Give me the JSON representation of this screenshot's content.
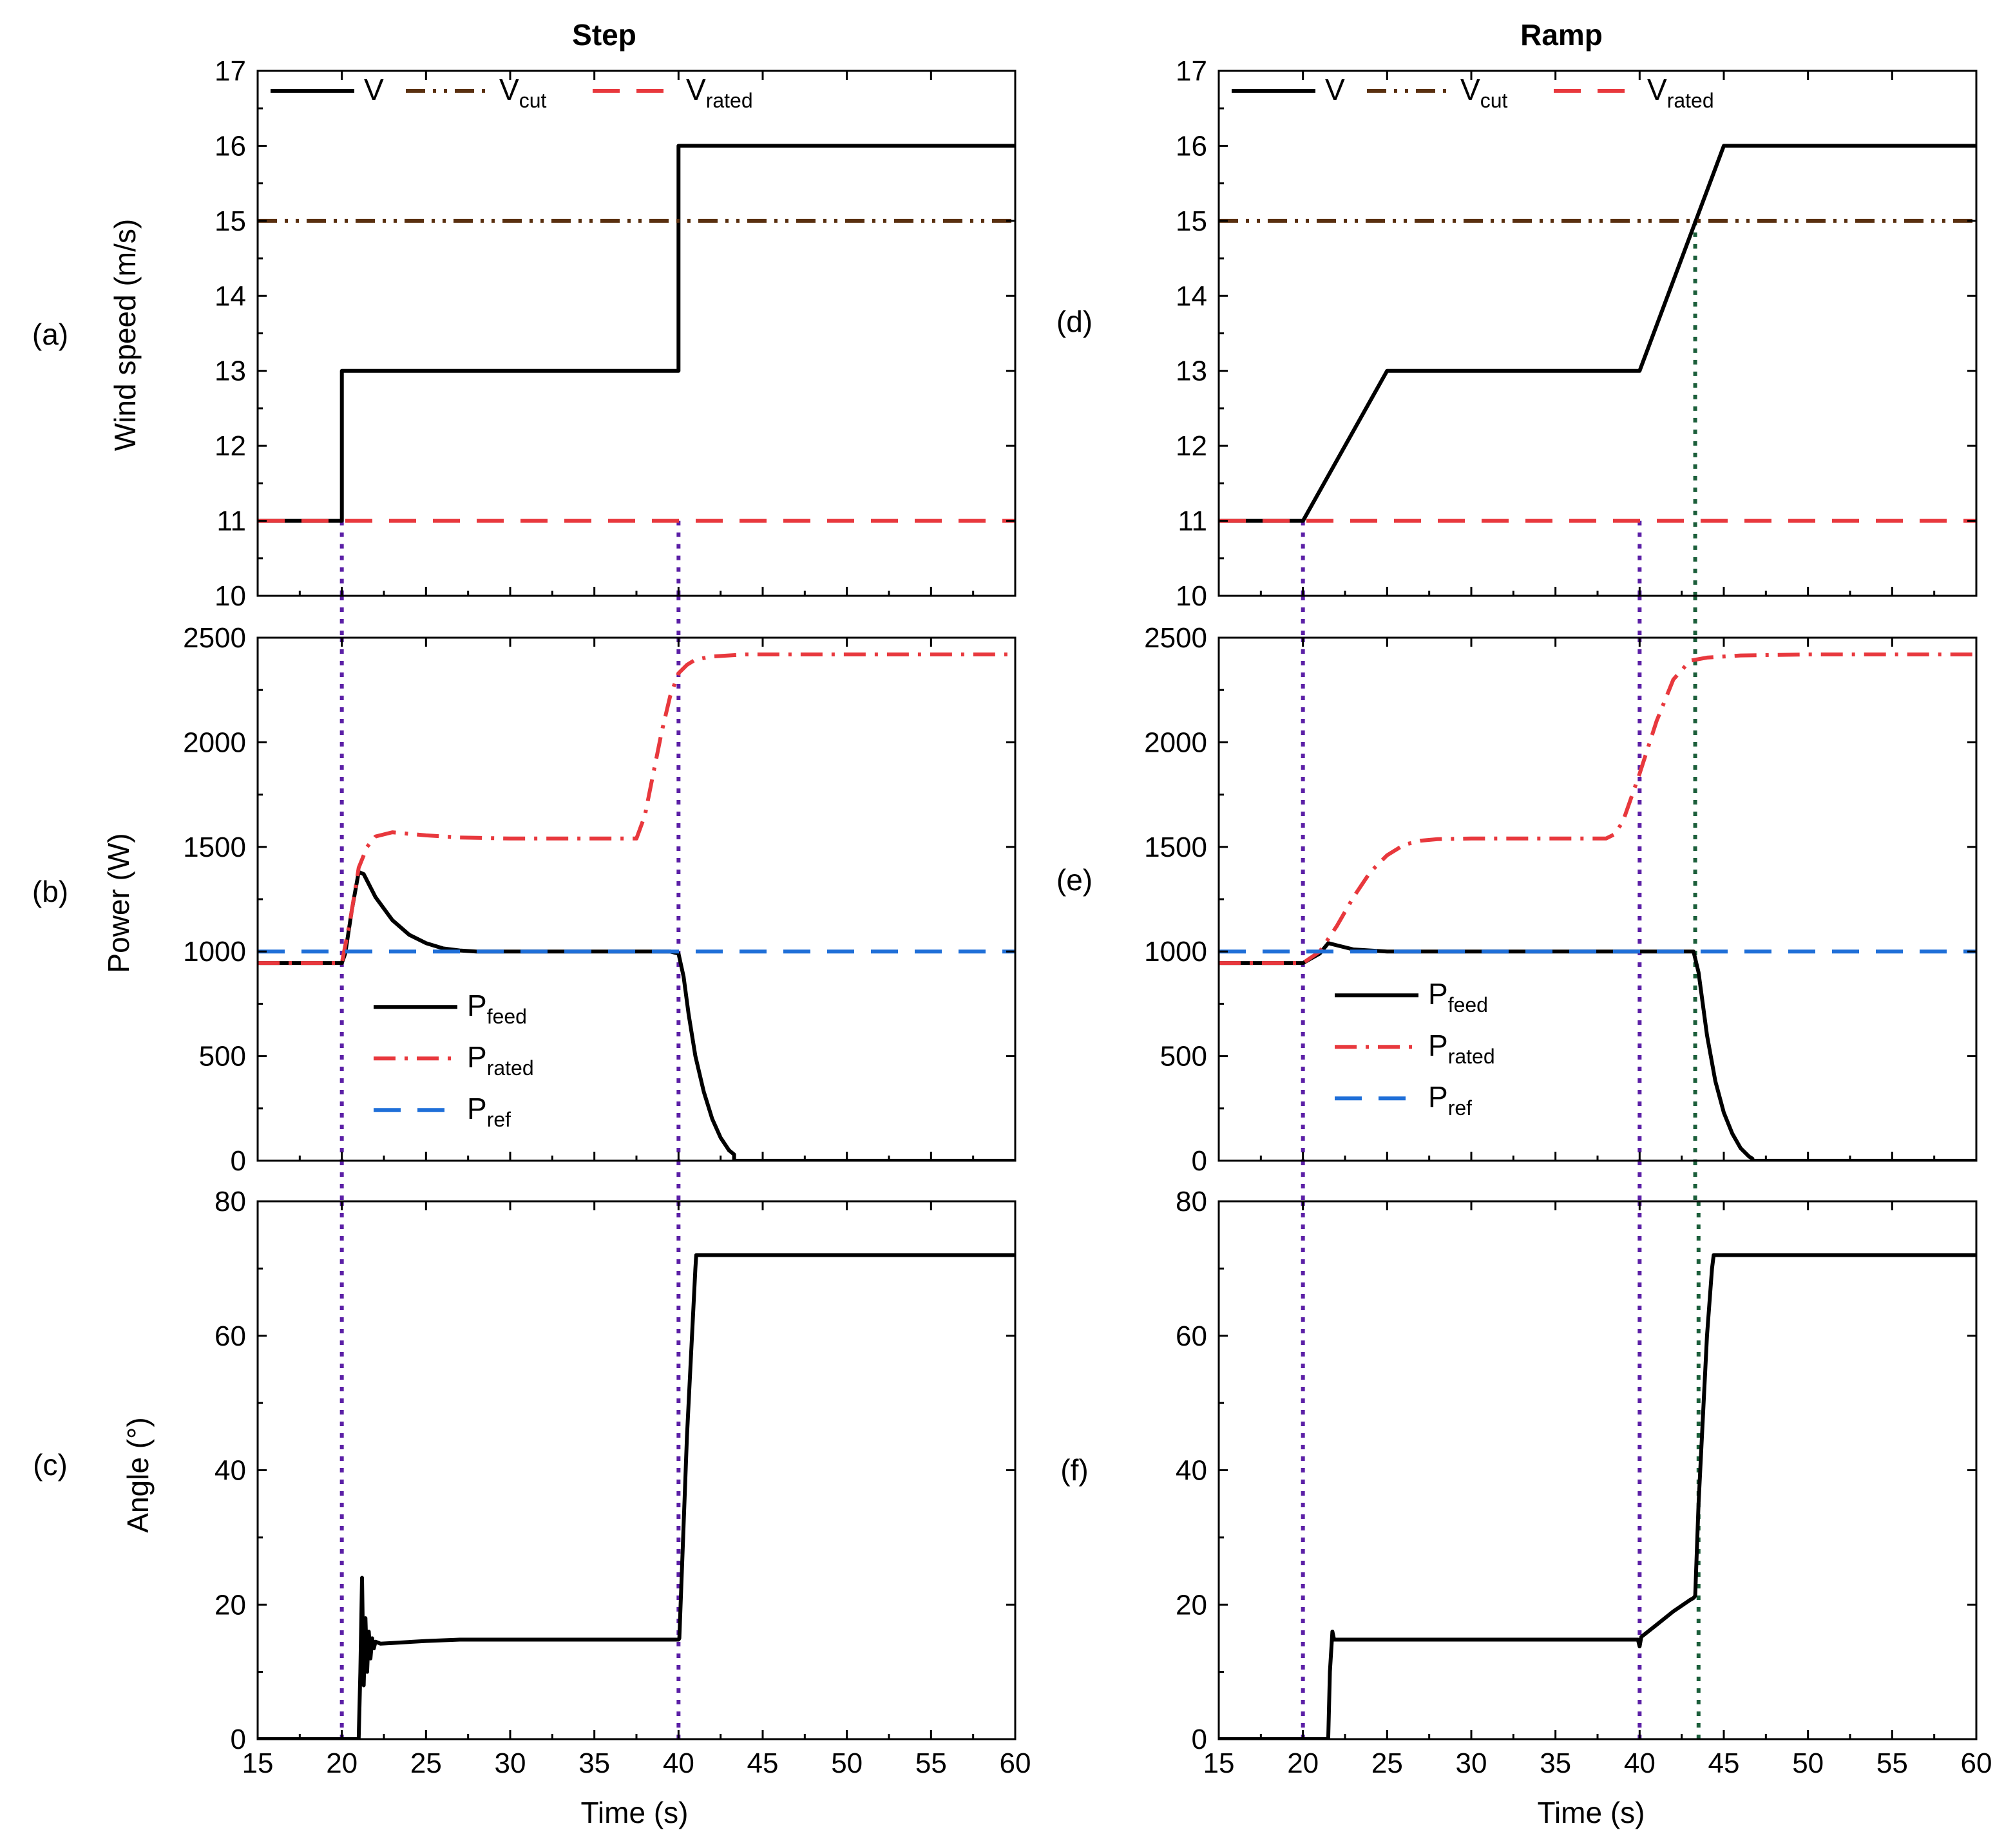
{
  "figure": {
    "columns": [
      {
        "title": "Step"
      },
      {
        "title": "Ramp"
      }
    ],
    "panel_labels": [
      "(a)",
      "(b)",
      "(c)",
      "(d)",
      "(e)",
      "(f)"
    ],
    "y_labels": [
      "Wind speed (m/s)",
      "Power (W)",
      "Angle (°)"
    ],
    "x_label": "Time (s)"
  },
  "colors": {
    "black": "#000000",
    "vcut": "#5a3010",
    "rated": "#e8383d",
    "ref": "#1f6fd8",
    "marker_purple": "#5b1fa6",
    "marker_green": "#1b5e3a"
  },
  "chart_data": [
    {
      "id": "a",
      "type": "line",
      "column": 0,
      "row": 0,
      "xlim": [
        15,
        60
      ],
      "ylim": [
        10,
        17
      ],
      "xticks": [
        15,
        20,
        25,
        30,
        35,
        40,
        45,
        50,
        55,
        60
      ],
      "yticks": [
        10,
        11,
        12,
        13,
        14,
        15,
        16,
        17
      ],
      "ylabel": "Wind speed (m/s)",
      "legend_position": "top",
      "series": [
        {
          "name": "V",
          "sub": "",
          "style": "solid",
          "color": "#000000",
          "x": [
            15,
            20,
            20,
            40,
            40,
            60
          ],
          "y": [
            11,
            11,
            13,
            13,
            16,
            16
          ]
        },
        {
          "name": "V",
          "sub": "cut",
          "style": "dashdotdot",
          "color": "#5a3010",
          "x": [
            15,
            60
          ],
          "y": [
            15,
            15
          ]
        },
        {
          "name": "V",
          "sub": "rated",
          "style": "dash",
          "color": "#e8383d",
          "x": [
            15,
            60
          ],
          "y": [
            11,
            11
          ]
        }
      ],
      "vlines": [
        {
          "x": 20,
          "color": "#5b1fa6"
        },
        {
          "x": 40,
          "color": "#5b1fa6"
        }
      ]
    },
    {
      "id": "b",
      "type": "line",
      "column": 0,
      "row": 1,
      "xlim": [
        15,
        60
      ],
      "ylim": [
        0,
        2500
      ],
      "xticks": [
        15,
        20,
        25,
        30,
        35,
        40,
        45,
        50,
        55,
        60
      ],
      "yticks": [
        0,
        500,
        1000,
        1500,
        2000,
        2500
      ],
      "ylabel": "Power (W)",
      "legend_position": "lower-left",
      "series": [
        {
          "name": "P",
          "sub": "feed",
          "style": "solid",
          "color": "#000000",
          "x": [
            15,
            20,
            20.2,
            20.6,
            21.0,
            21.3,
            22,
            23,
            24,
            25,
            26,
            27,
            28,
            30,
            35,
            39.5,
            40,
            40.3,
            40.6,
            41,
            41.5,
            42,
            42.5,
            43,
            43.3,
            43.3,
            60
          ],
          "y": [
            945,
            945,
            990,
            1200,
            1380,
            1370,
            1260,
            1150,
            1080,
            1040,
            1015,
            1005,
            1000,
            1000,
            1000,
            1000,
            990,
            880,
            700,
            500,
            330,
            200,
            110,
            50,
            30,
            0,
            0
          ]
        },
        {
          "name": "P",
          "sub": "rated",
          "style": "dashdot",
          "color": "#e8383d",
          "x": [
            15,
            20,
            20.5,
            21,
            21.5,
            22,
            23,
            25,
            27,
            30,
            35,
            37.5,
            38,
            38.5,
            39,
            39.5,
            40,
            40.5,
            41,
            42,
            44,
            50,
            60
          ],
          "y": [
            945,
            945,
            1150,
            1400,
            1500,
            1550,
            1570,
            1555,
            1545,
            1540,
            1540,
            1540,
            1650,
            1850,
            2050,
            2220,
            2330,
            2370,
            2395,
            2410,
            2420,
            2420,
            2420
          ]
        },
        {
          "name": "P",
          "sub": "ref",
          "style": "dash",
          "color": "#1f6fd8",
          "x": [
            15,
            60
          ],
          "y": [
            1000,
            1000
          ]
        }
      ],
      "vlines": [
        {
          "x": 20,
          "color": "#5b1fa6"
        },
        {
          "x": 40,
          "color": "#5b1fa6"
        }
      ]
    },
    {
      "id": "c",
      "type": "line",
      "column": 0,
      "row": 2,
      "xlim": [
        15,
        60
      ],
      "ylim": [
        0,
        80
      ],
      "xticks": [
        15,
        20,
        25,
        30,
        35,
        40,
        45,
        50,
        55,
        60
      ],
      "yticks": [
        0,
        20,
        40,
        60,
        80
      ],
      "ylabel": "Angle (°)",
      "xlabel": "Time (s)",
      "series": [
        {
          "name": "angle",
          "sub": "",
          "style": "solid",
          "color": "#000000",
          "x": [
            15,
            21.0,
            21.1,
            21.2,
            21.3,
            21.4,
            21.5,
            21.6,
            21.7,
            21.8,
            21.9,
            22.0,
            22.3,
            23,
            25,
            27,
            30,
            35,
            40,
            40.05,
            40.5,
            41,
            41.05,
            60
          ],
          "y": [
            0,
            0,
            10,
            24,
            8,
            18,
            10,
            16,
            12,
            15,
            13.5,
            14.5,
            14.2,
            14.3,
            14.6,
            14.8,
            14.8,
            14.8,
            14.8,
            15,
            45,
            70,
            72,
            72
          ]
        }
      ],
      "vlines": [
        {
          "x": 20,
          "color": "#5b1fa6"
        },
        {
          "x": 40,
          "color": "#5b1fa6"
        }
      ]
    },
    {
      "id": "d",
      "type": "line",
      "column": 1,
      "row": 0,
      "xlim": [
        15,
        60
      ],
      "ylim": [
        10,
        17
      ],
      "xticks": [
        15,
        20,
        25,
        30,
        35,
        40,
        45,
        50,
        55,
        60
      ],
      "yticks": [
        10,
        11,
        12,
        13,
        14,
        15,
        16,
        17
      ],
      "ylabel": "",
      "legend_position": "top",
      "series": [
        {
          "name": "V",
          "sub": "",
          "style": "solid",
          "color": "#000000",
          "x": [
            15,
            20,
            25,
            40,
            45,
            60
          ],
          "y": [
            11,
            11,
            13,
            13,
            16,
            16
          ]
        },
        {
          "name": "V",
          "sub": "cut",
          "style": "dashdotdot",
          "color": "#5a3010",
          "x": [
            15,
            60
          ],
          "y": [
            15,
            15
          ]
        },
        {
          "name": "V",
          "sub": "rated",
          "style": "dash",
          "color": "#e8383d",
          "x": [
            15,
            60
          ],
          "y": [
            11,
            11
          ]
        }
      ],
      "vlines": [
        {
          "x": 20,
          "color": "#5b1fa6"
        },
        {
          "x": 40,
          "color": "#5b1fa6"
        },
        {
          "x": 43.3,
          "color": "#1b5e3a",
          "from": 15
        }
      ]
    },
    {
      "id": "e",
      "type": "line",
      "column": 1,
      "row": 1,
      "xlim": [
        15,
        60
      ],
      "ylim": [
        0,
        2500
      ],
      "xticks": [
        15,
        20,
        25,
        30,
        35,
        40,
        45,
        50,
        55,
        60
      ],
      "yticks": [
        0,
        500,
        1000,
        1500,
        2000,
        2500
      ],
      "ylabel": "",
      "legend_position": "lower-left",
      "series": [
        {
          "name": "P",
          "sub": "feed",
          "style": "solid",
          "color": "#000000",
          "x": [
            15,
            20,
            21,
            21.5,
            22,
            23,
            25,
            30,
            35,
            40,
            43.2,
            43.5,
            44,
            44.5,
            45,
            45.5,
            46,
            46.5,
            46.7,
            46.7,
            60
          ],
          "y": [
            945,
            945,
            990,
            1040,
            1030,
            1010,
            1000,
            1000,
            1000,
            1000,
            1000,
            900,
            600,
            380,
            230,
            130,
            60,
            20,
            10,
            0,
            0
          ]
        },
        {
          "name": "P",
          "sub": "rated",
          "style": "dashdot",
          "color": "#e8383d",
          "x": [
            15,
            20,
            21,
            22,
            23,
            24,
            25,
            26,
            27,
            28,
            30,
            35,
            38,
            38.5,
            39,
            40,
            41,
            42,
            43,
            44,
            46,
            50,
            60
          ],
          "y": [
            945,
            945,
            1000,
            1120,
            1260,
            1380,
            1460,
            1510,
            1530,
            1537,
            1540,
            1540,
            1540,
            1560,
            1620,
            1850,
            2100,
            2300,
            2390,
            2405,
            2415,
            2420,
            2420
          ]
        },
        {
          "name": "P",
          "sub": "ref",
          "style": "dash",
          "color": "#1f6fd8",
          "x": [
            15,
            60
          ],
          "y": [
            1000,
            1000
          ]
        }
      ],
      "vlines": [
        {
          "x": 20,
          "color": "#5b1fa6"
        },
        {
          "x": 40,
          "color": "#5b1fa6"
        },
        {
          "x": 43.3,
          "color": "#1b5e3a"
        }
      ]
    },
    {
      "id": "f",
      "type": "line",
      "column": 1,
      "row": 2,
      "xlim": [
        15,
        60
      ],
      "ylim": [
        0,
        80
      ],
      "xticks": [
        15,
        20,
        25,
        30,
        35,
        40,
        45,
        50,
        55,
        60
      ],
      "yticks": [
        0,
        20,
        40,
        60,
        80
      ],
      "ylabel": "",
      "xlabel": "Time (s)",
      "series": [
        {
          "name": "angle",
          "sub": "",
          "style": "solid",
          "color": "#000000",
          "x": [
            15,
            21.5,
            21.6,
            21.75,
            21.85,
            22.0,
            25,
            30,
            35,
            39.9,
            40.0,
            40.1,
            41,
            42,
            43,
            43.2,
            43.3,
            43.5,
            44,
            44.3,
            44.4,
            60
          ],
          "y": [
            0,
            0,
            10,
            16,
            14.8,
            14.8,
            14.8,
            14.8,
            14.8,
            14.8,
            13.8,
            15.2,
            17,
            19,
            20.7,
            21,
            21.3,
            35,
            60,
            70,
            72,
            72
          ]
        }
      ],
      "vlines": [
        {
          "x": 20,
          "color": "#5b1fa6"
        },
        {
          "x": 40,
          "color": "#5b1fa6"
        },
        {
          "x": 43.5,
          "color": "#1b5e3a"
        }
      ]
    }
  ]
}
